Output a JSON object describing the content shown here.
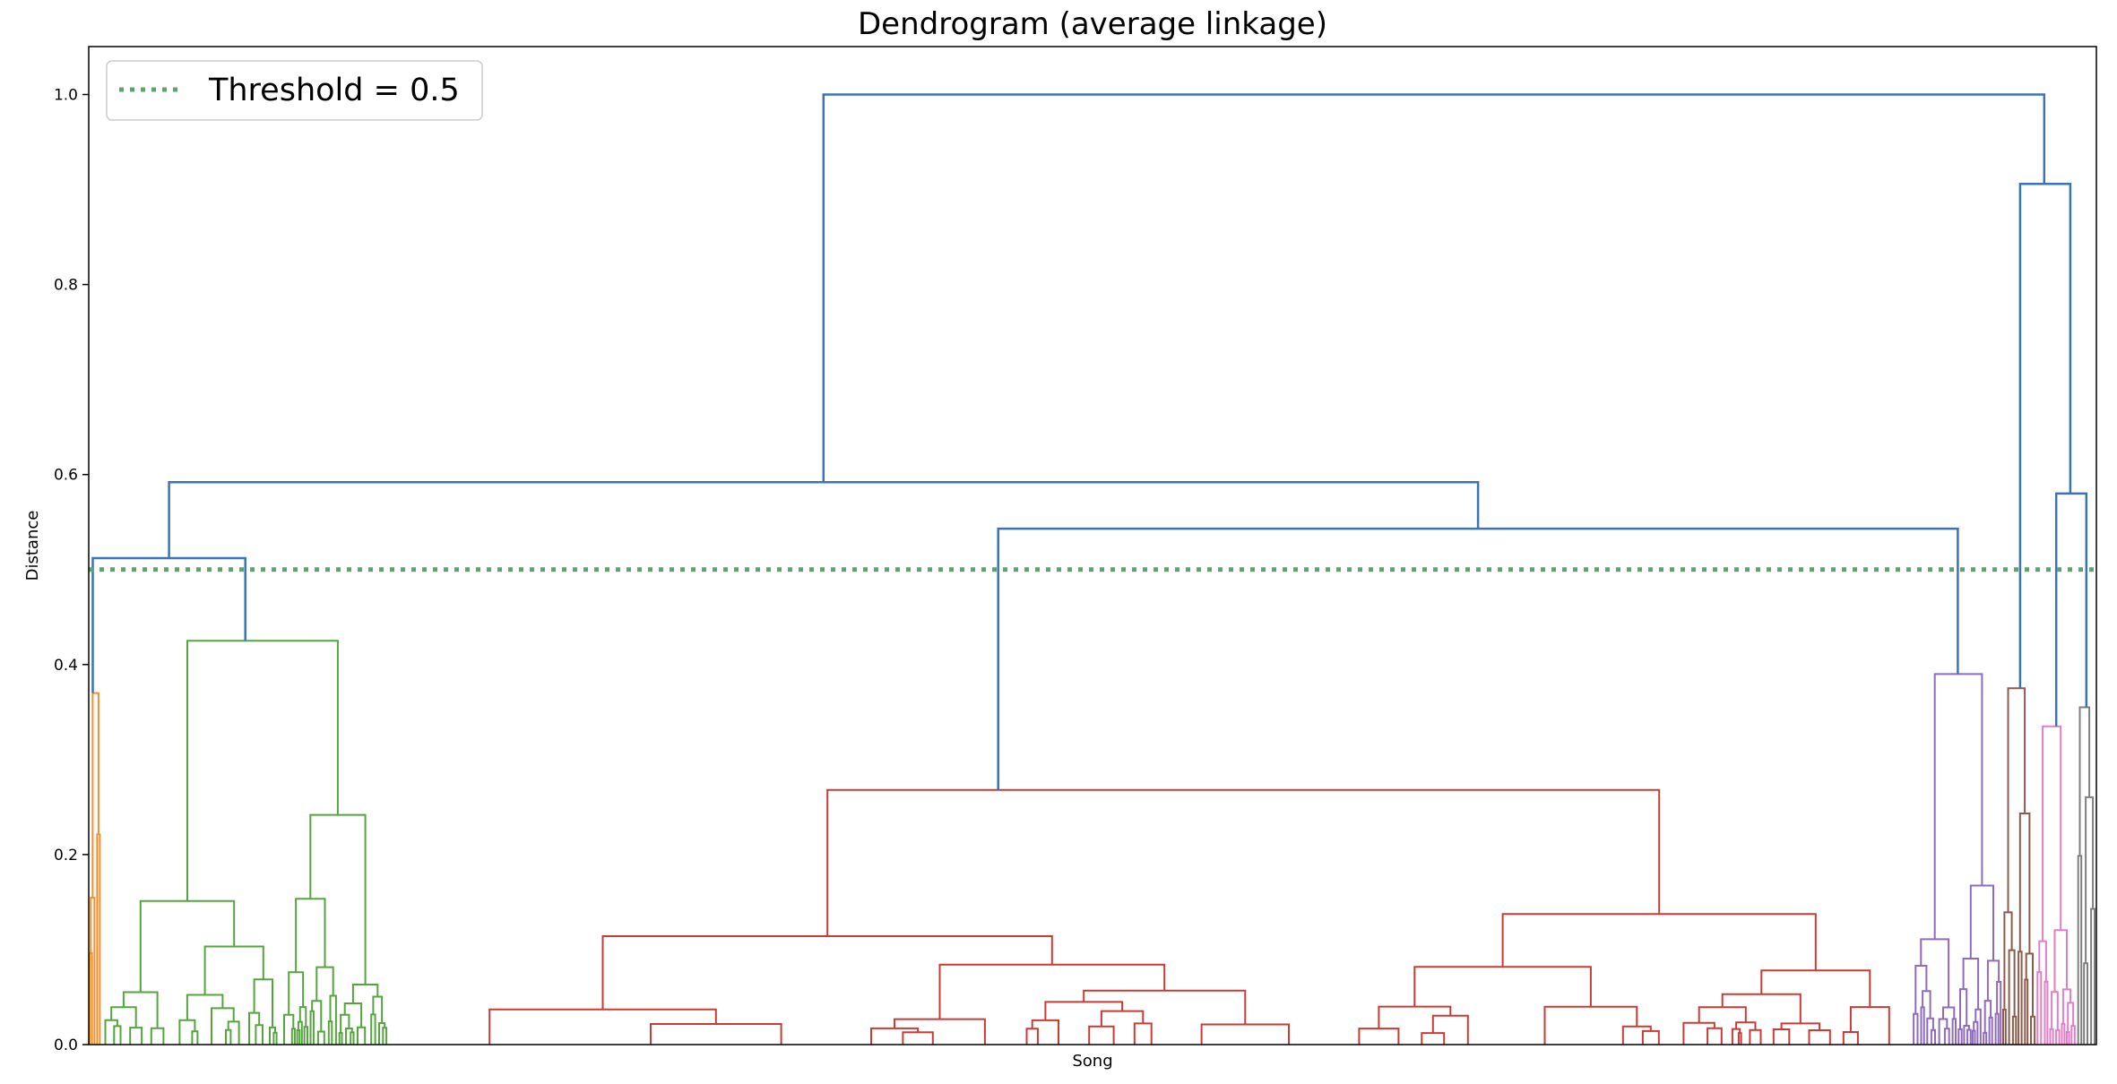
{
  "chart_data": {
    "type": "dendrogram",
    "title": "Dendrogram (average linkage)",
    "xlabel": "Song",
    "ylabel": "Distance",
    "ylim": [
      0,
      1.05
    ],
    "yticks": [
      0.0,
      0.2,
      0.4,
      0.6,
      0.8,
      1.0
    ],
    "ytick_labels": [
      "0.0",
      "0.2",
      "0.4",
      "0.6",
      "0.8",
      "1.0"
    ],
    "threshold": {
      "value": 0.5,
      "label": "Threshold = 0.5",
      "color": "#55a868",
      "style": "dotted"
    },
    "legend_position": "upper-left",
    "link_color_above_threshold": "#3a74b7",
    "clusters": [
      {
        "color": "#f28e2b",
        "leaf_start": 0.0,
        "leaf_end": 0.006,
        "top_height": 0.37
      },
      {
        "color": "#55a53e",
        "leaf_start": 0.006,
        "leaf_end": 0.149,
        "top_height": 0.425
      },
      {
        "color": "#c83b36",
        "leaf_start": 0.149,
        "leaf_end": 0.908,
        "top_height": 0.268
      },
      {
        "color": "#8f6bbd",
        "leaf_start": 0.908,
        "leaf_end": 0.953,
        "top_height": 0.39
      },
      {
        "color": "#8c5b4c",
        "leaf_start": 0.953,
        "leaf_end": 0.97,
        "top_height": 0.375
      },
      {
        "color": "#df7fc4",
        "leaf_start": 0.97,
        "leaf_end": 0.99,
        "top_height": 0.335
      },
      {
        "color": "#7f7f7f",
        "leaf_start": 0.99,
        "leaf_end": 1.0,
        "top_height": 0.355
      }
    ],
    "top_links": [
      {
        "height": 0.512,
        "left_pos": 0.002,
        "right_pos": 0.078,
        "left_h": 0.37,
        "right_h": 0.425
      },
      {
        "height": 0.543,
        "left_pos": 0.453,
        "right_pos": 0.931,
        "left_h": 0.268,
        "right_h": 0.39
      },
      {
        "height": 0.592,
        "left_pos": 0.04,
        "right_pos": 0.692,
        "left_h": 0.512,
        "right_h": 0.543
      },
      {
        "height": 0.58,
        "left_pos": 0.98,
        "right_pos": 0.995,
        "left_h": 0.335,
        "right_h": 0.355
      },
      {
        "height": 0.906,
        "left_pos": 0.962,
        "right_pos": 0.987,
        "left_h": 0.375,
        "right_h": 0.58
      },
      {
        "height": 1.0,
        "left_pos": 0.366,
        "right_pos": 0.974,
        "left_h": 0.592,
        "right_h": 0.906
      }
    ]
  }
}
